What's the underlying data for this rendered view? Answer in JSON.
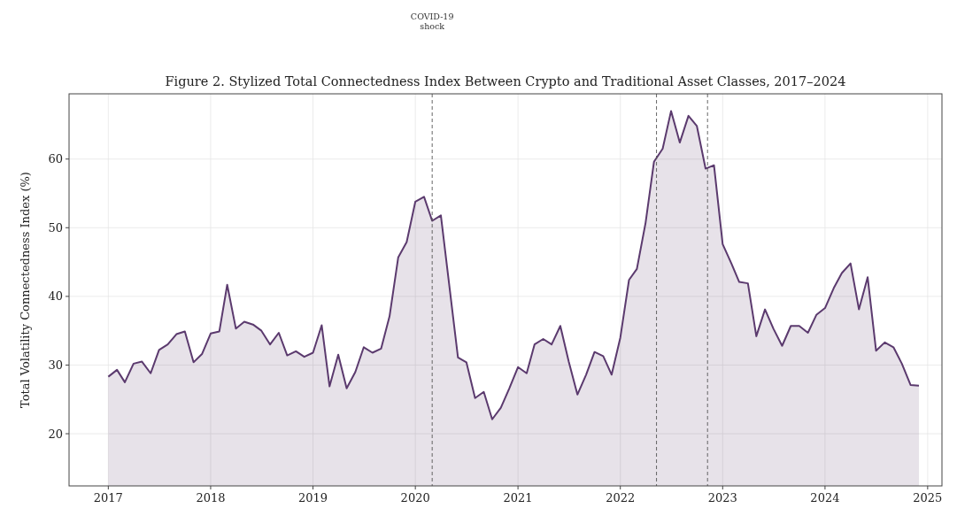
{
  "chart_data": {
    "type": "area",
    "title": "Figure 2. Stylized Total Connectedness Index Between Crypto and Traditional Asset Classes, 2017–2024",
    "ylabel": "Total Volatility Connectedness Index (%)",
    "x": [
      "2017-01",
      "2017-02",
      "2017-03",
      "2017-04",
      "2017-05",
      "2017-06",
      "2017-07",
      "2017-08",
      "2017-09",
      "2017-10",
      "2017-11",
      "2017-12",
      "2018-01",
      "2018-02",
      "2018-03",
      "2018-04",
      "2018-05",
      "2018-06",
      "2018-07",
      "2018-08",
      "2018-09",
      "2018-10",
      "2018-11",
      "2018-12",
      "2019-01",
      "2019-02",
      "2019-03",
      "2019-04",
      "2019-05",
      "2019-06",
      "2019-07",
      "2019-08",
      "2019-09",
      "2019-10",
      "2019-11",
      "2019-12",
      "2020-01",
      "2020-02",
      "2020-03",
      "2020-04",
      "2020-05",
      "2020-06",
      "2020-07",
      "2020-08",
      "2020-09",
      "2020-10",
      "2020-11",
      "2020-12",
      "2021-01",
      "2021-02",
      "2021-03",
      "2021-04",
      "2021-05",
      "2021-06",
      "2021-07",
      "2021-08",
      "2021-09",
      "2021-10",
      "2021-11",
      "2021-12",
      "2022-01",
      "2022-02",
      "2022-03",
      "2022-04",
      "2022-05",
      "2022-06",
      "2022-07",
      "2022-08",
      "2022-09",
      "2022-10",
      "2022-11",
      "2022-12",
      "2023-01",
      "2023-02",
      "2023-03",
      "2023-04",
      "2023-05",
      "2023-06",
      "2023-07",
      "2023-08",
      "2023-09",
      "2023-10",
      "2023-11",
      "2023-12",
      "2024-01",
      "2024-02",
      "2024-03",
      "2024-04",
      "2024-05",
      "2024-06",
      "2024-07",
      "2024-08",
      "2024-09",
      "2024-10",
      "2024-11",
      "2024-12"
    ],
    "series": [
      {
        "color": "#5b3a6e",
        "values": [
          28.3,
          29.3,
          27.5,
          30.2,
          30.5,
          28.8,
          32.2,
          33.0,
          34.5,
          34.9,
          30.4,
          31.6,
          34.6,
          34.9,
          41.7,
          35.3,
          36.3,
          35.9,
          35.0,
          33.0,
          34.7,
          31.4,
          32.0,
          31.2,
          31.8,
          35.8,
          26.9,
          31.5,
          26.6,
          29.0,
          32.6,
          31.8,
          32.4,
          37.1,
          45.7,
          47.9,
          53.8,
          54.5,
          51.0,
          51.8,
          41.6,
          31.1,
          30.4,
          25.2,
          26.1,
          22.1,
          23.8,
          26.6,
          29.7,
          28.8,
          33.0,
          33.8,
          33.0,
          35.7,
          30.5,
          25.7,
          28.6,
          31.9,
          31.3,
          28.6,
          34.0,
          42.4,
          44.0,
          50.7,
          59.6,
          61.5,
          67.0,
          62.4,
          66.3,
          64.8,
          58.6,
          59.1,
          47.6,
          44.8,
          42.1,
          41.9,
          34.2,
          38.1,
          35.3,
          32.8,
          35.7,
          35.7,
          34.7,
          37.3,
          38.3,
          41.2,
          43.4,
          44.8,
          38.1,
          42.8,
          32.1,
          33.3,
          32.6,
          30.2,
          27.1,
          27.0
        ]
      }
    ],
    "xlim": [
      "2016-08-14",
      "2025-02-21"
    ],
    "xticks": [
      "2017",
      "2018",
      "2019",
      "2020",
      "2021",
      "2022",
      "2023",
      "2024",
      "2025"
    ],
    "ylim": [
      12.4,
      69.5
    ],
    "yticks": [
      20,
      30,
      40,
      50,
      60
    ],
    "grid": true,
    "ref_lines": [
      {
        "axis": "x",
        "value": "2020-03",
        "label": "COVID-19\nshock",
        "color": "#555555",
        "line_style": "dashed"
      },
      {
        "axis": "x",
        "value": "2022-05-10",
        "color": "#555555",
        "line_style": "dashed"
      },
      {
        "axis": "x",
        "value": "2022-11-08",
        "color": "#555555",
        "line_style": "dashed"
      }
    ]
  }
}
